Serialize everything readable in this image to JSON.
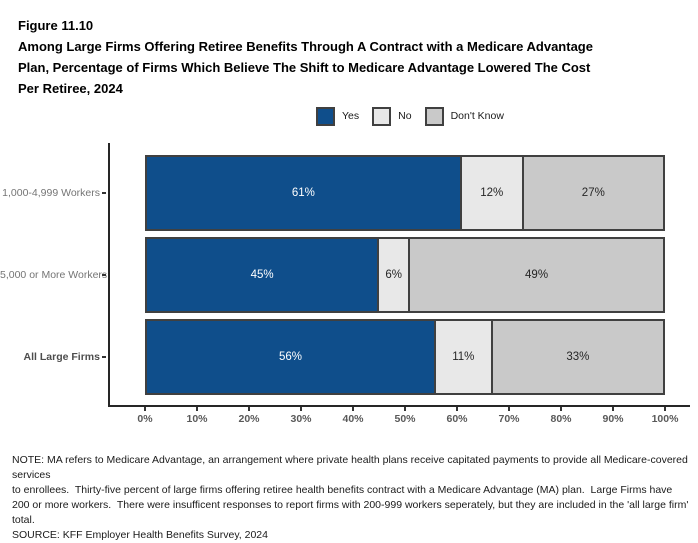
{
  "header": {
    "figure_label": "Figure 11.10",
    "title_lines": [
      "Among Large Firms Offering Retiree Benefits Through A Contract with a Medicare Advantage",
      "Plan, Percentage of Firms Which Believe The Shift to Medicare Advantage Lowered The Cost",
      "Per Retiree, 2024"
    ]
  },
  "chart_data": {
    "type": "bar",
    "stacked": true,
    "orientation": "horizontal",
    "title": "Among Large Firms Offering Retiree Benefits Through A Contract with a Medicare Advantage Plan, Percentage of Firms Which Believe The Shift to Medicare Advantage Lowered The Cost Per Retiree, 2024",
    "categories": [
      "1,000-4,999 Workers",
      "5,000 or More Workers",
      "All Large Firms"
    ],
    "series": [
      {
        "name": "Yes",
        "color": "#0F4E8B",
        "label_color": "#ffffff",
        "values": [
          61,
          45,
          56
        ]
      },
      {
        "name": "No",
        "color": "#E8E8E8",
        "label_color": "#262626",
        "values": [
          12,
          6,
          11
        ]
      },
      {
        "name": "Don't Know",
        "color": "#C9C9C9",
        "label_color": "#262626",
        "values": [
          27,
          49,
          33
        ]
      }
    ],
    "value_suffix": "%",
    "xlim": [
      0,
      100
    ],
    "x_ticks": [
      "0%",
      "10%",
      "20%",
      "30%",
      "40%",
      "50%",
      "60%",
      "70%",
      "80%",
      "90%",
      "100%"
    ],
    "legend_position": "top",
    "grid": false,
    "bold_categories": [
      "All Large Firms"
    ]
  },
  "footer": {
    "note_lines": [
      "NOTE: MA refers to Medicare Advantage, an arrangement where private health plans receive capitated payments to provide all Medicare-covered services",
      "to enrollees.  Thirty-five percent of large firms offering retiree health benefits contract with a Medicare Advantage (MA) plan.  Large Firms have",
      "200 or more workers.  There were insufficent responses to report firms with 200-999 workers seperately, but they are included in the 'all large firm'",
      "total."
    ],
    "source": "SOURCE: KFF Employer Health Benefits Survey, 2024"
  }
}
